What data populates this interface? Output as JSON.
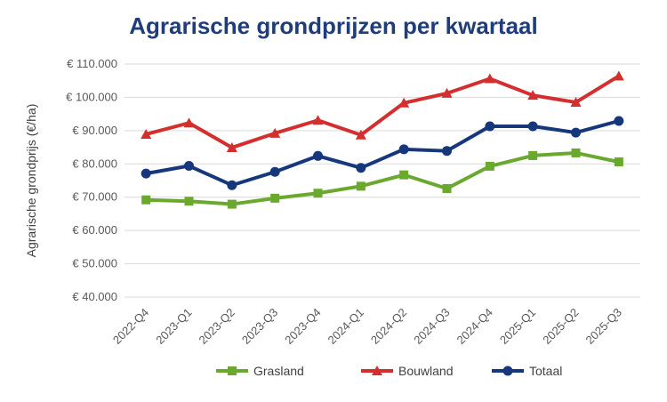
{
  "chart_data": {
    "type": "line",
    "title": "Agrarische grondprijzen per kwartaal",
    "xlabel": "",
    "ylabel": "Agrarische grondprijs (€/ha)",
    "categories": [
      "2022-Q4",
      "2023-Q1",
      "2023-Q2",
      "2023-Q3",
      "2023-Q4",
      "2024-Q1",
      "2024-Q2",
      "2024-Q3",
      "2024-Q4",
      "2025-Q1",
      "2025-Q2",
      "2025-Q3"
    ],
    "ylim": [
      40000,
      110000
    ],
    "yticks": [
      40000,
      50000,
      60000,
      70000,
      80000,
      90000,
      100000,
      110000
    ],
    "ytick_labels": [
      "€ 40.000",
      "€ 50.000",
      "€ 60.000",
      "€ 70.000",
      "€ 80.000",
      "€ 90.000",
      "€ 100.000",
      "€ 110.000"
    ],
    "grid": true,
    "legend_position": "bottom",
    "series": [
      {
        "name": "Grasland",
        "marker": "square",
        "color": "#6aa82e",
        "values": [
          69200,
          68800,
          67900,
          69700,
          71200,
          73300,
          76700,
          72600,
          79300,
          82500,
          83300,
          80600
        ]
      },
      {
        "name": "Bouwland",
        "marker": "triangle",
        "color": "#d32f2f",
        "values": [
          88900,
          92300,
          84900,
          89200,
          93100,
          88700,
          98300,
          101200,
          105600,
          100600,
          98500,
          106400
        ]
      },
      {
        "name": "Totaal",
        "marker": "circle",
        "color": "#17377c",
        "values": [
          77100,
          79400,
          73600,
          77600,
          82400,
          78800,
          84400,
          83900,
          91300,
          91300,
          89400,
          92900
        ]
      }
    ]
  }
}
